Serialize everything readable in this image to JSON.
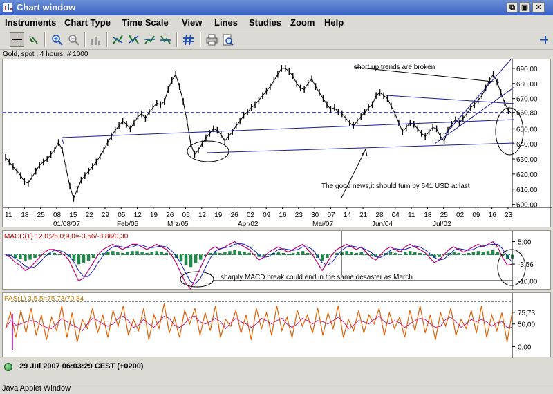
{
  "window": {
    "title": "Chart window"
  },
  "menu": [
    "Instruments",
    "Chart Type",
    "Time Scale",
    "View",
    "Lines",
    "Studies",
    "Zoom",
    "Help"
  ],
  "toolbar": {
    "buttons": [
      "crosshair-icon",
      "cursor-icon",
      "zoom-in-icon",
      "zoom-out-icon",
      "volume-icon",
      "trend-up-icon",
      "trend-down-icon",
      "trend-up-2-icon",
      "trend-down-2-icon",
      "grid-icon",
      "print-icon",
      "print-preview-icon"
    ]
  },
  "chart": {
    "symbol_label": "Gold, spot , 4 hours, # 1000",
    "annotations": {
      "trend": "short up trends are broken",
      "news": "The good news,it should turn by 641 USD at last",
      "macd": "sharply MACD break could end in the same desaster as March"
    },
    "current_price": "660,80",
    "macd_value": "-3,56",
    "pas_value": "75,73"
  },
  "chart_data": [
    {
      "type": "line",
      "name": "price",
      "x_ticks": [
        "11",
        "18",
        "25",
        "08",
        "15",
        "22",
        "29",
        "05",
        "12",
        "19",
        "26",
        "05",
        "12",
        "19",
        "26",
        "02",
        "09",
        "16",
        "23",
        "30",
        "07",
        "14",
        "21",
        "28",
        "04",
        "11",
        "18",
        "25",
        "02",
        "09",
        "16",
        "23"
      ],
      "x_month_labels": [
        "01/08/07",
        "Feb/05",
        "Mrz/05",
        "Apr/02",
        "Mai/07",
        "Jun/04",
        "Jul/02"
      ],
      "y_ticks": [
        "690,00",
        "680,00",
        "670,00",
        "660,80",
        "650,00",
        "640,00",
        "630,00",
        "620,00",
        "610,00",
        "600,00"
      ],
      "ylim": [
        598,
        695
      ],
      "values": [
        631,
        628,
        625,
        622,
        619,
        615,
        614,
        618,
        622,
        626,
        628,
        630,
        633,
        636,
        641,
        636,
        624,
        612,
        604,
        610,
        616,
        619,
        622,
        625,
        628,
        632,
        636,
        641,
        645,
        649,
        652,
        655,
        653,
        650,
        654,
        658,
        660,
        657,
        661,
        664,
        667,
        666,
        668,
        676,
        682,
        686,
        678,
        668,
        655,
        640,
        633,
        636,
        640,
        644,
        647,
        650,
        649,
        646,
        642,
        645,
        648,
        652,
        655,
        659,
        661,
        664,
        666,
        669,
        672,
        675,
        678,
        682,
        686,
        690,
        690,
        688,
        685,
        680,
        677,
        676,
        680,
        683,
        678,
        674,
        670,
        666,
        663,
        664,
        661,
        660,
        657,
        654,
        652,
        655,
        658,
        661,
        664,
        666,
        672,
        674,
        672,
        670,
        665,
        660,
        654,
        648,
        651,
        654,
        653,
        650,
        647,
        645,
        648,
        651,
        650,
        645,
        642,
        649,
        653,
        656,
        654,
        657,
        660,
        664,
        666,
        669,
        672,
        677,
        682,
        686,
        681,
        674,
        667,
        662,
        660
      ]
    },
    {
      "type": "line",
      "name": "MACD(1) 12,0;26,0;9,0=-3,56/-3,86/0,30",
      "y_ticks": [
        "5,00",
        "-3,56",
        "-10,00"
      ],
      "ylim": [
        -12,
        7
      ],
      "values": [
        0,
        -1,
        -3,
        -4,
        -6,
        -5,
        -3,
        -1,
        1,
        2,
        2,
        1,
        0,
        -2,
        -6,
        -10,
        -9,
        -6,
        -3,
        0,
        2,
        3,
        4,
        3,
        2,
        3,
        4,
        4,
        3,
        2,
        3,
        4,
        3,
        2,
        0,
        -3,
        -7,
        -11,
        -13,
        -9,
        -5,
        -1,
        2,
        3,
        2,
        3,
        4,
        5,
        4,
        3,
        2,
        0,
        -2,
        -1,
        1,
        2,
        3,
        2,
        1,
        2,
        3,
        4,
        2,
        0,
        -3,
        -6,
        -3,
        0,
        2,
        3,
        4,
        3,
        2,
        3,
        1,
        -1,
        -2,
        0,
        2,
        3,
        2,
        1,
        3,
        4,
        3,
        2,
        1,
        -1,
        -3,
        -2,
        0,
        2,
        3,
        2,
        1,
        2,
        3,
        4,
        3,
        4,
        5,
        3,
        -1,
        -4,
        -3.56
      ]
    },
    {
      "type": "line",
      "name": "PAS(1) 3,5,5=75,73/70,84",
      "y_ticks": [
        "75,73",
        "50,00",
        "0,00"
      ],
      "ylim": [
        -10,
        100
      ],
      "values": [
        40,
        75,
        20,
        80,
        30,
        85,
        25,
        70,
        15,
        65,
        35,
        90,
        20,
        75,
        10,
        60,
        40,
        85,
        30,
        70,
        20,
        80,
        45,
        90,
        25,
        60,
        35,
        85,
        15,
        70,
        40,
        95,
        30,
        65,
        20,
        80,
        50,
        85,
        25,
        75,
        35,
        90,
        20,
        60,
        45,
        80,
        30,
        70,
        15,
        85,
        40,
        75,
        25,
        90,
        35,
        65,
        20,
        80,
        45,
        70,
        30,
        85,
        25,
        75,
        40,
        90,
        20,
        60,
        35,
        80,
        30,
        70,
        50,
        85,
        25,
        75,
        40,
        65,
        20,
        80,
        35,
        90,
        30,
        70,
        15,
        75,
        45,
        85,
        25,
        60,
        40,
        80,
        30,
        90,
        20,
        70,
        35,
        75,
        10,
        76
      ]
    }
  ],
  "status": {
    "timestamp": "29 Jul 2007 06:03:29  CEST (+0200)"
  },
  "footer": {
    "text": "Java Applet Window"
  }
}
